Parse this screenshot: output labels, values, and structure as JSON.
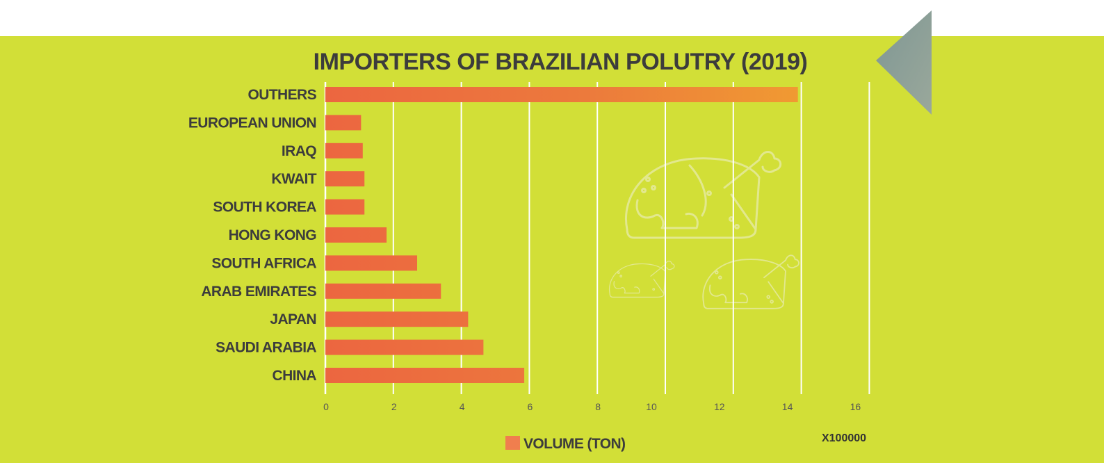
{
  "chart_data": {
    "type": "bar",
    "orientation": "horizontal",
    "title": "IMPORTERS OF BRAZILIAN POLUTRY (2019)",
    "categories": [
      "OUTHERS",
      "EUROPEAN UNION",
      "IRAQ",
      "KWAIT",
      "SOUTH KOREA",
      "HONG KONG",
      "SOUTH AFRICA",
      "ARAB EMIRATES",
      "JAPAN",
      "SAUDI ARABIA",
      "CHINA"
    ],
    "series": [
      {
        "name": "VOLUME (TON)",
        "values": [
          13.9,
          1.05,
          1.1,
          1.15,
          1.15,
          1.8,
          2.7,
          3.4,
          4.2,
          4.65,
          5.85
        ]
      }
    ],
    "x_ticks": [
      "0",
      "2",
      "4",
      "6",
      "8",
      "10",
      "12",
      "14",
      "16"
    ],
    "xlim": [
      0,
      16
    ],
    "x_multiplier": "X100000",
    "grid": true,
    "legend_position": "bottom",
    "colors": {
      "band": "#d2df37",
      "bar_start": "#ec6640",
      "bar_end": "#f09a32",
      "legend_swatch": "#f07e4e",
      "grid": "#ffffff",
      "triangle": "#8a9e9c"
    }
  },
  "decorations": {
    "corner_shape": "grey-triangle",
    "background_icons": [
      "roast-chicken-icon",
      "roast-chicken-icon",
      "roast-chicken-icon"
    ]
  }
}
